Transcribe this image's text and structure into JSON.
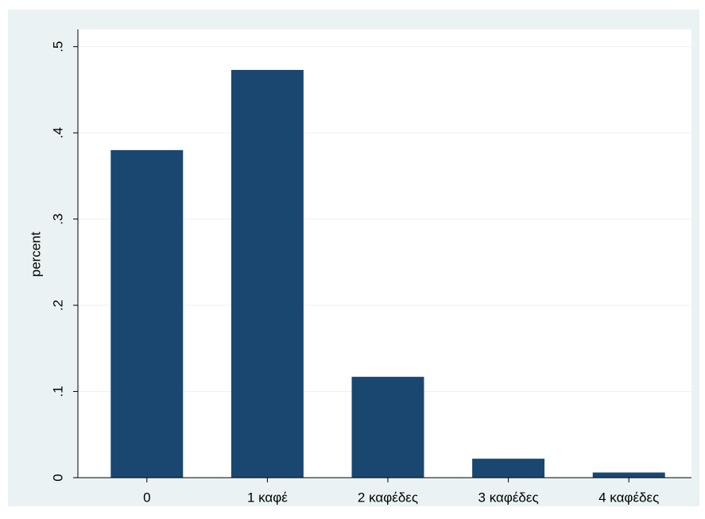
{
  "chart_data": {
    "type": "bar",
    "y_label": "percent",
    "categories": [
      "0",
      "1 καφέ",
      "2 καφέδες",
      "3 καφέδες",
      "4 καφέδες"
    ],
    "values": [
      0.38,
      0.473,
      0.117,
      0.022,
      0.006
    ],
    "color": "#1a476f",
    "ylim": [
      0,
      0.52
    ],
    "yticks": [
      0,
      {
        "value": 0.1,
        "label": ".1"
      },
      {
        "value": 0.2,
        "label": ".2"
      },
      {
        "value": 0.3,
        "label": ".3"
      },
      {
        "value": 0.4,
        "label": ".4"
      },
      {
        "value": 0.5,
        "label": ".5"
      }
    ],
    "grid": true
  }
}
